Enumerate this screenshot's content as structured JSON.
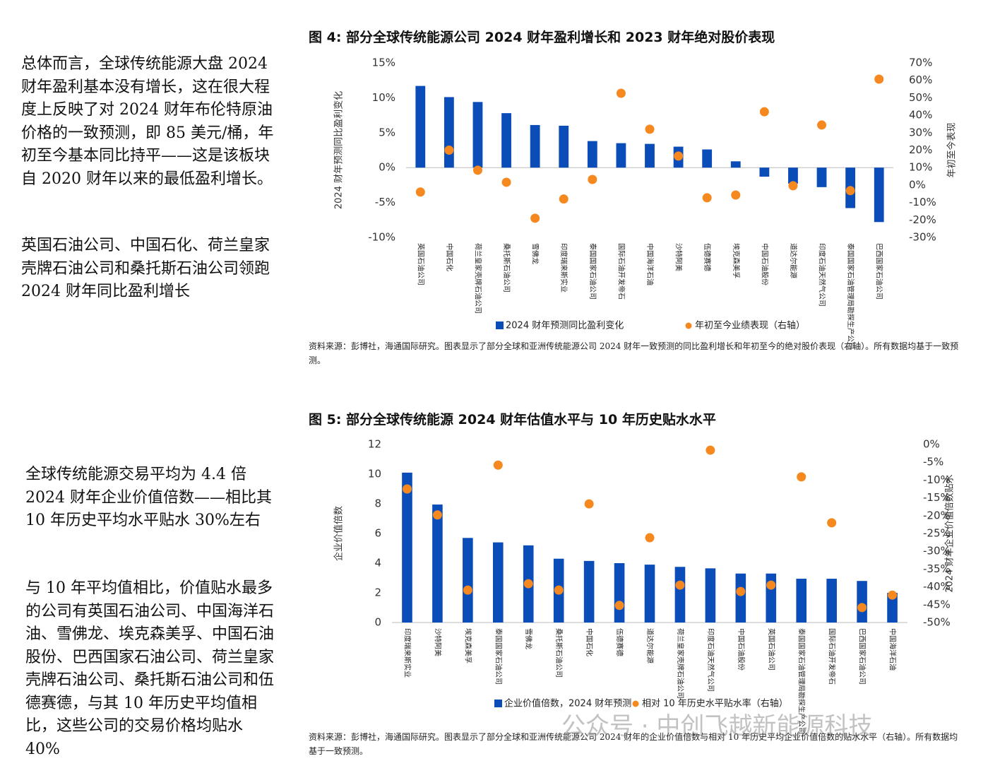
{
  "text": {
    "p1": "总体而言，全球传统能源大盘 2024 财年盈利基本没有增长，这在很大程度上反映了对 2024 财年布伦特原油价格的一致预测，即 85 美元/桶，年初至今基本同比持平——这是该板块自 2020 财年以来的最低盈利增长。",
    "p2": "英国石油公司、中国石化、荷兰皇家壳牌石油公司和桑托斯石油公司领跑 2024 财年同比盈利增长",
    "p3": "全球传统能源交易平均为 4.4 倍 2024 财年企业价值倍数——相比其 10 年历史平均水平贴水 30%左右",
    "p4": "与 10 年平均值相比，价值贴水最多的公司有英国石油公司、中国海洋石油、雪佛龙、埃克森美孚、中国石油股份、巴西国家石油公司、荷兰皇家壳牌石油公司、桑托斯石油公司和伍德赛德，与其 10 年历史平均值相比，这些公司的交易价格均贴水 40%"
  },
  "watermark": "公众号 · 中创飞越新能源科技",
  "chart_data": [
    {
      "type": "bar",
      "title": "图 4:  部分全球传统能源公司 2024 财年盈利增长和 2023 财年绝对股价表现",
      "y_label": "2024 财年预测同比盈利变化",
      "y2_label": "年初至今表现",
      "source": "资料来源：彭博社，海通国际研究。图表显示了部分全球和亚洲传统能源公司 2024 财年一致预测的同比盈利增长和年初至今的绝对股价表现（右轴）。所有数据均基于一致预测。",
      "categories": [
        "英国石油公司",
        "中国石化",
        "荷兰皇家壳牌石油公司",
        "桑托斯石油公司",
        "雪佛龙",
        "印度瑞来斯实业",
        "泰国国家石油公司",
        "国际石油开发帝石",
        "中国海洋石油",
        "沙特阿美",
        "伍德赛德",
        "埃克森美孚",
        "中国石油股份",
        "道达尔能源",
        "印度石油天然气公司",
        "泰国国家石油管理局勘探生产公司",
        "巴西国家石油公司"
      ],
      "series": [
        {
          "name": "2024 财年预测同比盈利变化",
          "type": "bar",
          "color": "#0b4db8",
          "values": [
            11.7,
            10.1,
            9.4,
            7.8,
            6.1,
            6.0,
            3.8,
            3.5,
            3.4,
            3.0,
            2.6,
            0.9,
            -1.3,
            -2.3,
            -2.8,
            -5.8,
            -7.8
          ]
        },
        {
          "name": "年初至今业绩表现（右轴）",
          "type": "scatter",
          "axis": "y2",
          "color": "#f5891f",
          "values": [
            -4,
            20,
            8.5,
            1.6,
            -19,
            -8,
            3.2,
            52.6,
            32,
            16.6,
            -7.3,
            -5.7,
            42,
            -0.4,
            34.4,
            -3.2,
            60.7
          ]
        }
      ],
      "ylim": [
        -10,
        15
      ],
      "yticks": [
        {
          "value": -10,
          "label": "-10%"
        },
        {
          "value": -5,
          "label": "-5%"
        },
        {
          "value": 0,
          "label": "0%"
        },
        {
          "value": 5,
          "label": "5%"
        },
        {
          "value": 10,
          "label": "10%"
        },
        {
          "value": 15,
          "label": "15%"
        }
      ],
      "y2lim": [
        -30,
        70
      ],
      "y2ticks": [
        {
          "value": -30,
          "label": "-30%"
        },
        {
          "value": -20,
          "label": "-20%"
        },
        {
          "value": -10,
          "label": "-10%"
        },
        {
          "value": 0,
          "label": "0%"
        },
        {
          "value": 10,
          "label": "10%"
        },
        {
          "value": 20,
          "label": "20%"
        },
        {
          "value": 30,
          "label": "30%"
        },
        {
          "value": 40,
          "label": "40%"
        },
        {
          "value": 50,
          "label": "50%"
        },
        {
          "value": 60,
          "label": "60%"
        },
        {
          "value": 70,
          "label": "70%"
        }
      ],
      "grid": false
    },
    {
      "type": "bar",
      "title": "图 5:  部分全球传统能源 2024 财年估值水平与 10 年历史贴水水平",
      "y_label": "企业价值倍数",
      "y2_label": "2024 财年企业价值倍数贴水",
      "source": "资料来源：彭博社，海通国际研究。图表显示了部分全球和亚洲传统能源公司 2024 财年的企业价值倍数与相对 10 年历史平均企业价值倍数的贴水水平（右轴）。所有数据均基于一致预测。",
      "categories": [
        "印度瑞来斯实业",
        "沙特阿美",
        "埃克森美孚",
        "泰国国家石油公司",
        "雪佛龙",
        "桑托斯石油公司",
        "中国石化",
        "伍德赛德",
        "道达尔能源",
        "荷兰皇家壳牌石油公司",
        "印度石油天然气公司",
        "中国石油股份",
        "英国石油公司",
        "泰国国家石油管理局勘探生产公司",
        "国际石油开发帝石",
        "巴西国家石油公司",
        "中国海洋石油"
      ],
      "series": [
        {
          "name": "企业价值倍数，2024 财年预测",
          "type": "bar",
          "color": "#0b4db8",
          "values": [
            10.1,
            7.95,
            5.7,
            5.4,
            5.2,
            4.3,
            4.15,
            4.0,
            3.9,
            3.75,
            3.65,
            3.3,
            3.3,
            2.95,
            2.95,
            2.8,
            2.0
          ]
        },
        {
          "name": "相对 10 年历史水平贴水率（右轴）",
          "type": "scatter",
          "axis": "y2",
          "color": "#f5891f",
          "values": [
            -12.5,
            -19.8,
            -40.9,
            -5.8,
            -39.1,
            -40.9,
            -16.7,
            -45.2,
            -26.2,
            -39.5,
            -1.6,
            -41.3,
            -39.5,
            -9.1,
            -22.0,
            -45.8,
            -42.3
          ]
        }
      ],
      "ylim": [
        0,
        12
      ],
      "yticks": [
        0,
        2,
        4,
        6,
        8,
        10,
        12
      ],
      "y2lim": [
        -50,
        0
      ],
      "y2ticks": [
        {
          "value": -50,
          "label": "-50%"
        },
        {
          "value": -45,
          "label": "-45%"
        },
        {
          "value": -40,
          "label": "-40%"
        },
        {
          "value": -35,
          "label": "-35%"
        },
        {
          "value": -30,
          "label": "-30%"
        },
        {
          "value": -25,
          "label": "-25%"
        },
        {
          "value": -20,
          "label": "-20%"
        },
        {
          "value": -15,
          "label": "-15%"
        },
        {
          "value": -10,
          "label": "-10%"
        },
        {
          "value": -5,
          "label": "-5%"
        },
        {
          "value": 0,
          "label": "0%"
        }
      ],
      "grid": false
    }
  ]
}
